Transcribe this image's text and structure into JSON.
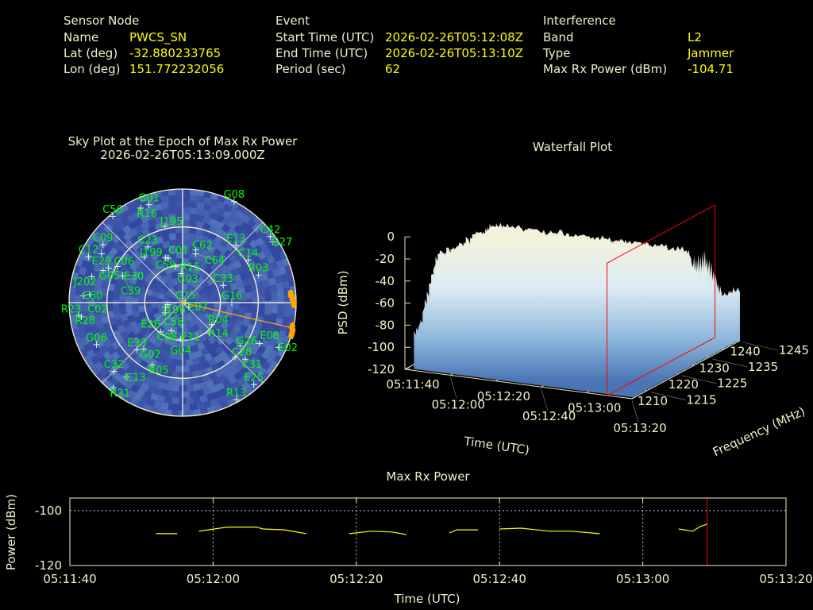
{
  "colors": {
    "label": "#f0f0c8",
    "value": "#ffff00",
    "satellite": "#00ff00",
    "trace": "#ffa500",
    "marker": "#ff0000",
    "sky_bg": "#3c55aa"
  },
  "sensor": {
    "heading": "Sensor Node",
    "name_label": "Name",
    "name": "PWCS_SN",
    "lat_label": "Lat (deg)",
    "lat": "-32.880233765",
    "lon_label": "Lon (deg)",
    "lon": "151.772232056"
  },
  "event": {
    "heading": "Event",
    "start_label": "Start Time (UTC)",
    "start": "2026-02-26T05:12:08Z",
    "end_label": "End Time (UTC)",
    "end": "2026-02-26T05:13:10Z",
    "period_label": "Period (sec)",
    "period": "62"
  },
  "interference": {
    "heading": "Interference",
    "band_label": "Band",
    "band": "L2",
    "type_label": "Type",
    "type": "Jammer",
    "power_label": "Max Rx Power (dBm)",
    "power": "-104.71"
  },
  "chart_data": [
    {
      "type": "scatter",
      "title": "Sky Plot at the Epoch of Max Rx Power",
      "subtitle": "2026-02-26T05:13:09.000Z",
      "projection": "polar azimuth/elevation",
      "elevation_rings": [
        0,
        30,
        60
      ],
      "satellites": [
        {
          "id": "G01",
          "az": 341,
          "el": 8
        },
        {
          "id": "R16",
          "az": 336,
          "el": 8
        },
        {
          "id": "C56",
          "az": 321,
          "el": 2
        },
        {
          "id": "J195",
          "az": 347,
          "el": 28
        },
        {
          "id": "G08",
          "az": 27,
          "el": 0
        },
        {
          "id": "C42",
          "az": 53,
          "el": 3
        },
        {
          "id": "G27",
          "az": 56,
          "el": 4
        },
        {
          "id": "E13",
          "az": 43,
          "el": 28
        },
        {
          "id": "C14",
          "az": 57,
          "el": 28
        },
        {
          "id": "R03",
          "az": 70,
          "el": 26
        },
        {
          "id": "C33",
          "az": 67,
          "el": 55
        },
        {
          "id": "G16",
          "az": 90,
          "el": 51
        },
        {
          "id": "C12",
          "az": 296,
          "el": 7
        },
        {
          "id": "E29",
          "az": 301,
          "el": 15
        },
        {
          "id": "C09",
          "az": 306,
          "el": 12
        },
        {
          "id": "C06",
          "az": 299,
          "el": 31
        },
        {
          "id": "G05",
          "az": 292,
          "el": 22
        },
        {
          "id": "E30",
          "az": 295,
          "el": 25
        },
        {
          "id": "C39",
          "az": 294,
          "el": 38
        },
        {
          "id": "J202",
          "az": 286,
          "el": 15
        },
        {
          "id": "C60",
          "az": 274,
          "el": 11
        },
        {
          "id": "C02",
          "az": 275,
          "el": 16
        },
        {
          "id": "R28",
          "az": 263,
          "el": 7
        },
        {
          "id": "R23",
          "az": 262,
          "el": 9
        },
        {
          "id": "C23",
          "az": 328,
          "el": 38
        },
        {
          "id": "J199",
          "az": 320,
          "el": 43
        },
        {
          "id": "C59",
          "az": 339,
          "el": 52
        },
        {
          "id": "C01",
          "az": 342,
          "el": 53
        },
        {
          "id": "R15",
          "az": 349,
          "el": 61
        },
        {
          "id": "G03",
          "az": 357,
          "el": 67
        },
        {
          "id": "C62",
          "az": 14,
          "el": 47
        },
        {
          "id": "C64",
          "az": 15,
          "el": 50
        },
        {
          "id": "C25",
          "az": 90,
          "el": 88
        },
        {
          "id": "E07",
          "az": 125,
          "el": 84
        },
        {
          "id": "J196",
          "az": 262,
          "el": 78
        },
        {
          "id": "C58",
          "az": 255,
          "el": 76
        },
        {
          "id": "E26",
          "az": 240,
          "el": 74
        },
        {
          "id": "C08",
          "az": 217,
          "el": 61
        },
        {
          "id": "E11",
          "az": 202,
          "el": 66
        },
        {
          "id": "G04",
          "az": 183,
          "el": 61
        },
        {
          "id": "R04",
          "az": 127,
          "el": 61
        },
        {
          "id": "R14",
          "az": 139,
          "el": 58
        },
        {
          "id": "G06",
          "az": 244,
          "el": 14
        },
        {
          "id": "E33",
          "az": 224,
          "el": 38
        },
        {
          "id": "G02",
          "az": 220,
          "el": 42
        },
        {
          "id": "R05",
          "az": 206,
          "el": 35
        },
        {
          "id": "C32",
          "az": 225,
          "el": 13
        },
        {
          "id": "C13",
          "az": 217,
          "el": 16
        },
        {
          "id": "R21",
          "az": 219,
          "el": 3
        },
        {
          "id": "G26",
          "az": 127,
          "el": 33
        },
        {
          "id": "C28",
          "az": 136,
          "el": 30
        },
        {
          "id": "C31",
          "az": 132,
          "el": 23
        },
        {
          "id": "E08",
          "az": 118,
          "el": 21
        },
        {
          "id": "E02",
          "az": 115,
          "el": 6
        },
        {
          "id": "E25",
          "az": 139,
          "el": 4
        },
        {
          "id": "R13",
          "az": 151,
          "el": 2
        }
      ],
      "interference_track": [
        [
          85,
          4
        ],
        [
          86,
          4
        ],
        [
          87,
          3
        ],
        [
          88,
          3
        ],
        [
          89,
          2
        ],
        [
          90,
          2
        ],
        [
          91,
          2
        ],
        [
          102,
          1
        ],
        [
          103,
          1
        ],
        [
          104,
          0
        ],
        [
          105,
          0
        ],
        [
          106,
          0
        ],
        [
          107,
          0
        ]
      ],
      "interference_direction": {
        "az": 103,
        "el": 0
      }
    },
    {
      "type": "surface",
      "title": "Waterfall Plot",
      "xlabel": "Time (UTC)",
      "ylabel": "Frequency (MHz)",
      "zlabel": "PSD (dBm)",
      "xticks": [
        "05:11:40",
        "05:12:00",
        "05:12:20",
        "05:12:40",
        "05:13:00",
        "05:13:20"
      ],
      "yticks": [
        "1210",
        "1215",
        "1220",
        "1225",
        "1230",
        "1235",
        "1240",
        "1245"
      ],
      "zticks": [
        "0",
        "-20",
        "-40",
        "-60",
        "-80",
        "-100",
        "-120"
      ],
      "zlim": [
        -120,
        0
      ],
      "marker_time": "05:13:09"
    },
    {
      "type": "line",
      "title": "Max Rx Power",
      "xlabel": "Time (UTC)",
      "ylabel": "Power (dBm)",
      "xticks": [
        "05:11:40",
        "05:12:00",
        "05:12:20",
        "05:12:40",
        "05:13:00",
        "05:13:20"
      ],
      "yticks": [
        "-100",
        "-120"
      ],
      "ylim": [
        -120,
        -95.4
      ],
      "xlim": [
        "05:11:40",
        "05:13:20"
      ],
      "grid": true,
      "marker_time": "05:13:09",
      "segments": [
        [
          [
            "05:11:52",
            -108.4
          ],
          [
            "05:11:55",
            -108.4
          ]
        ],
        [
          [
            "05:11:58",
            -107.5
          ],
          [
            "05:12:02",
            -106.0
          ],
          [
            "05:12:06",
            -106.0
          ],
          [
            "05:12:07",
            -106.7
          ],
          [
            "05:12:10",
            -107.0
          ],
          [
            "05:12:13",
            -108.4
          ]
        ],
        [
          [
            "05:12:19",
            -108.4
          ],
          [
            "05:12:22",
            -107.5
          ],
          [
            "05:12:25",
            -107.8
          ],
          [
            "05:12:27",
            -108.7
          ]
        ],
        [
          [
            "05:12:33",
            -108.1
          ],
          [
            "05:12:34",
            -107.0
          ],
          [
            "05:12:37",
            -107.0
          ]
        ],
        [
          [
            "05:12:40",
            -106.7
          ],
          [
            "05:12:43",
            -106.4
          ],
          [
            "05:12:47",
            -107.5
          ],
          [
            "05:12:50",
            -107.5
          ],
          [
            "05:12:54",
            -108.4
          ]
        ],
        [
          [
            "05:13:05",
            -106.7
          ],
          [
            "05:13:07",
            -107.5
          ],
          [
            "05:13:08",
            -105.8
          ],
          [
            "05:13:09",
            -104.9
          ]
        ]
      ]
    }
  ]
}
